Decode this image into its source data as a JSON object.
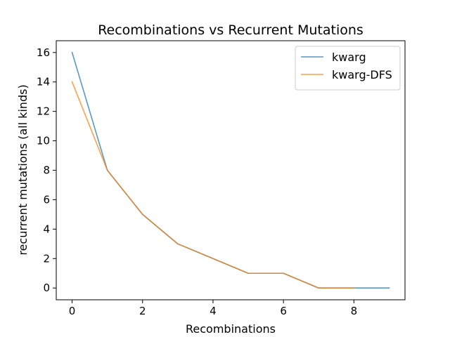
{
  "chart_data": {
    "type": "line",
    "title": "Recombinations vs Recurrent Mutations",
    "xlabel": "Recombinations",
    "ylabel": "recurrent mutations (all kinds)",
    "xlim": [
      -0.45,
      9.45
    ],
    "ylim": [
      -0.8,
      16.8
    ],
    "xticks": [
      0,
      2,
      4,
      6,
      8
    ],
    "yticks": [
      0,
      2,
      4,
      6,
      8,
      10,
      12,
      14,
      16
    ],
    "grid": false,
    "legend_position": "top-right",
    "series": [
      {
        "name": "kwarg",
        "color": "#1f77b4",
        "x": [
          0,
          1,
          2,
          3,
          4,
          5,
          6,
          7,
          8,
          9
        ],
        "y": [
          16,
          8,
          5,
          3,
          2,
          1,
          1,
          0,
          0,
          0
        ]
      },
      {
        "name": "kwarg-DFS",
        "color": "#ff7f0e",
        "x": [
          0,
          1,
          2,
          3,
          4,
          5,
          6,
          7,
          8
        ],
        "y": [
          14,
          8,
          5,
          3,
          2,
          1,
          1,
          0,
          0
        ]
      }
    ]
  }
}
